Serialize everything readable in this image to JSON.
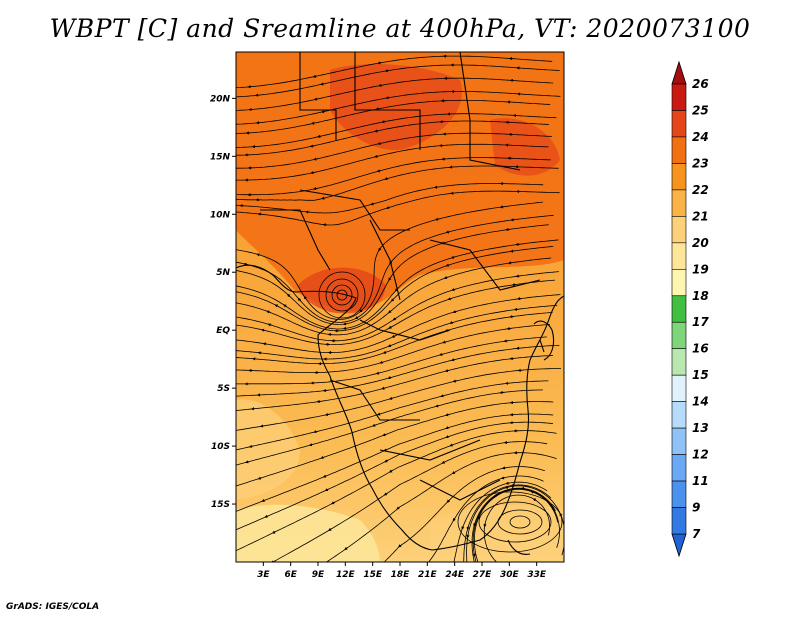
{
  "title": "WBPT [C] and Sreamline at 400hPa, VT: 2020073100",
  "credit": "GrADS: IGES/COLA",
  "map": {
    "lon_range": [
      0,
      36
    ],
    "lat_range": [
      -20,
      24
    ],
    "lon_ticks": [
      "3E",
      "6E",
      "9E",
      "12E",
      "15E",
      "18E",
      "21E",
      "24E",
      "27E",
      "30E",
      "33E"
    ],
    "lat_ticks": [
      "20N",
      "15N",
      "10N",
      "5N",
      "EQ",
      "5S",
      "10S",
      "15S"
    ],
    "field": "wet-bulb potential temperature",
    "overlay": "streamlines with arrowheads",
    "features": [
      {
        "name": "warm core",
        "lat_range": [
          5,
          24
        ],
        "lon_range": [
          4,
          36
        ],
        "value_range": [
          22,
          24
        ]
      },
      {
        "name": "vortex",
        "lat": 3.5,
        "lon": 11.5
      },
      {
        "name": "cyclonic circulation",
        "lat": -15.5,
        "lon": 29.5
      },
      {
        "name": "cooler southwest",
        "lat_range": [
          -20,
          -12
        ],
        "lon_range": [
          0,
          12
        ],
        "value_range": [
          19,
          20
        ]
      }
    ]
  },
  "colorbar": {
    "labels": [
      "7",
      "9",
      "11",
      "12",
      "13",
      "14",
      "15",
      "16",
      "17",
      "18",
      "19",
      "20",
      "21",
      "22",
      "23",
      "24",
      "25",
      "26"
    ],
    "colors": [
      "#1f63d6",
      "#3279e3",
      "#4b91ee",
      "#6aa9f4",
      "#8fc3f8",
      "#b6dbfb",
      "#e0f2fb",
      "#b8e8b0",
      "#7fd67a",
      "#41bf40",
      "#fdf6b0",
      "#fde69a",
      "#fdd07a",
      "#f9b347",
      "#f7941d",
      "#f27014",
      "#e4461a",
      "#c81a10",
      "#a40e0e"
    ]
  }
}
